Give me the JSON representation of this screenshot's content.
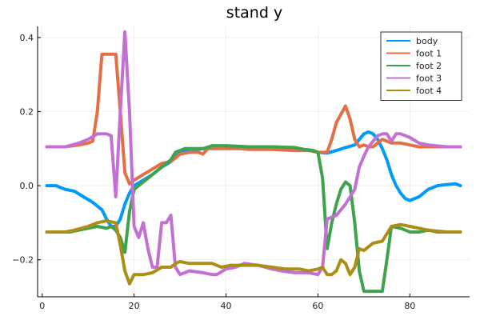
{
  "chart_data": {
    "type": "line",
    "title": "stand y",
    "xlabel": "",
    "ylabel": "",
    "xlim": [
      -1,
      93
    ],
    "ylim": [
      -0.3,
      0.43
    ],
    "xticks": [
      0,
      20,
      40,
      60,
      80
    ],
    "yticks": [
      -0.2,
      0.0,
      0.2,
      0.4
    ],
    "xtick_labels": [
      "0",
      "20",
      "40",
      "60",
      "80"
    ],
    "ytick_labels": [
      "−0.2",
      "0.0",
      "0.2",
      "0.4"
    ],
    "grid": true,
    "legend_position": "top-right",
    "series": [
      {
        "name": "body",
        "color": "#009AFA",
        "points": [
          [
            1,
            0.0
          ],
          [
            3,
            0.0
          ],
          [
            5,
            -0.01
          ],
          [
            7,
            -0.015
          ],
          [
            9,
            -0.03
          ],
          [
            11,
            -0.045
          ],
          [
            13,
            -0.065
          ],
          [
            14,
            -0.09
          ],
          [
            15,
            -0.11
          ],
          [
            16,
            -0.11
          ],
          [
            17,
            -0.09
          ],
          [
            18,
            -0.05
          ],
          [
            19,
            -0.02
          ],
          [
            20,
            0.0
          ],
          [
            22,
            0.015
          ],
          [
            24,
            0.03
          ],
          [
            26,
            0.05
          ],
          [
            28,
            0.065
          ],
          [
            30,
            0.09
          ],
          [
            32,
            0.095
          ],
          [
            35,
            0.1
          ],
          [
            40,
            0.102
          ],
          [
            45,
            0.102
          ],
          [
            50,
            0.102
          ],
          [
            55,
            0.1
          ],
          [
            58,
            0.095
          ],
          [
            60,
            0.09
          ],
          [
            62,
            0.088
          ],
          [
            64,
            0.095
          ],
          [
            66,
            0.103
          ],
          [
            68,
            0.11
          ],
          [
            70,
            0.14
          ],
          [
            71,
            0.145
          ],
          [
            72,
            0.14
          ],
          [
            73,
            0.125
          ],
          [
            74,
            0.1
          ],
          [
            75,
            0.07
          ],
          [
            76,
            0.03
          ],
          [
            77,
            0.0
          ],
          [
            78,
            -0.02
          ],
          [
            79,
            -0.035
          ],
          [
            80,
            -0.04
          ],
          [
            82,
            -0.03
          ],
          [
            84,
            -0.01
          ],
          [
            86,
            0.0
          ],
          [
            88,
            0.003
          ],
          [
            90,
            0.005
          ],
          [
            91,
            0.0
          ]
        ]
      },
      {
        "name": "foot 1",
        "color": "#E26F46",
        "points": [
          [
            1,
            0.105
          ],
          [
            5,
            0.105
          ],
          [
            8,
            0.11
          ],
          [
            10,
            0.115
          ],
          [
            11,
            0.12
          ],
          [
            12,
            0.2
          ],
          [
            13,
            0.355
          ],
          [
            16,
            0.355
          ],
          [
            17,
            0.2
          ],
          [
            18,
            0.035
          ],
          [
            19,
            0.005
          ],
          [
            20,
            0.015
          ],
          [
            22,
            0.03
          ],
          [
            24,
            0.045
          ],
          [
            26,
            0.06
          ],
          [
            28,
            0.065
          ],
          [
            29,
            0.075
          ],
          [
            30,
            0.085
          ],
          [
            32,
            0.09
          ],
          [
            34,
            0.09
          ],
          [
            35,
            0.085
          ],
          [
            36,
            0.1
          ],
          [
            40,
            0.1
          ],
          [
            43,
            0.1
          ],
          [
            45,
            0.098
          ],
          [
            50,
            0.098
          ],
          [
            55,
            0.095
          ],
          [
            58,
            0.095
          ],
          [
            60,
            0.09
          ],
          [
            62,
            0.09
          ],
          [
            63,
            0.125
          ],
          [
            64,
            0.17
          ],
          [
            66,
            0.215
          ],
          [
            67,
            0.18
          ],
          [
            68,
            0.125
          ],
          [
            69,
            0.105
          ],
          [
            70,
            0.11
          ],
          [
            71,
            0.105
          ],
          [
            72,
            0.105
          ],
          [
            73,
            0.115
          ],
          [
            74,
            0.125
          ],
          [
            75,
            0.12
          ],
          [
            76,
            0.115
          ],
          [
            78,
            0.115
          ],
          [
            80,
            0.11
          ],
          [
            82,
            0.105
          ],
          [
            84,
            0.105
          ],
          [
            88,
            0.105
          ],
          [
            91,
            0.105
          ]
        ]
      },
      {
        "name": "foot 2",
        "color": "#3DA44D",
        "points": [
          [
            1,
            -0.125
          ],
          [
            4,
            -0.125
          ],
          [
            6,
            -0.125
          ],
          [
            8,
            -0.12
          ],
          [
            10,
            -0.115
          ],
          [
            12,
            -0.11
          ],
          [
            14,
            -0.115
          ],
          [
            15,
            -0.11
          ],
          [
            16,
            -0.12
          ],
          [
            17,
            -0.14
          ],
          [
            18,
            -0.18
          ],
          [
            19,
            -0.07
          ],
          [
            20,
            -0.01
          ],
          [
            22,
            0.01
          ],
          [
            24,
            0.03
          ],
          [
            26,
            0.05
          ],
          [
            28,
            0.07
          ],
          [
            29,
            0.09
          ],
          [
            31,
            0.1
          ],
          [
            35,
            0.1
          ],
          [
            37,
            0.108
          ],
          [
            40,
            0.108
          ],
          [
            45,
            0.105
          ],
          [
            50,
            0.105
          ],
          [
            55,
            0.103
          ],
          [
            57,
            0.098
          ],
          [
            59,
            0.095
          ],
          [
            60,
            0.09
          ],
          [
            61,
            0.02
          ],
          [
            62,
            -0.17
          ],
          [
            63,
            -0.1
          ],
          [
            64,
            -0.05
          ],
          [
            65,
            -0.01
          ],
          [
            66,
            0.01
          ],
          [
            67,
            0.0
          ],
          [
            68,
            -0.1
          ],
          [
            69,
            -0.23
          ],
          [
            70,
            -0.285
          ],
          [
            74,
            -0.285
          ],
          [
            75,
            -0.2
          ],
          [
            76,
            -0.11
          ],
          [
            78,
            -0.115
          ],
          [
            80,
            -0.125
          ],
          [
            82,
            -0.125
          ],
          [
            84,
            -0.12
          ],
          [
            86,
            -0.125
          ],
          [
            91,
            -0.125
          ]
        ]
      },
      {
        "name": "foot 3",
        "color": "#C271D2",
        "points": [
          [
            1,
            0.105
          ],
          [
            5,
            0.105
          ],
          [
            8,
            0.115
          ],
          [
            10,
            0.125
          ],
          [
            12,
            0.14
          ],
          [
            14,
            0.14
          ],
          [
            15,
            0.135
          ],
          [
            16,
            -0.03
          ],
          [
            17,
            0.2
          ],
          [
            18,
            0.415
          ],
          [
            19,
            0.2
          ],
          [
            20,
            -0.11
          ],
          [
            21,
            -0.14
          ],
          [
            22,
            -0.1
          ],
          [
            23,
            -0.17
          ],
          [
            24,
            -0.22
          ],
          [
            25,
            -0.22
          ],
          [
            26,
            -0.1
          ],
          [
            27,
            -0.1
          ],
          [
            28,
            -0.08
          ],
          [
            29,
            -0.22
          ],
          [
            30,
            -0.24
          ],
          [
            32,
            -0.23
          ],
          [
            35,
            -0.235
          ],
          [
            37,
            -0.24
          ],
          [
            38,
            -0.24
          ],
          [
            40,
            -0.225
          ],
          [
            42,
            -0.22
          ],
          [
            44,
            -0.21
          ],
          [
            47,
            -0.215
          ],
          [
            50,
            -0.225
          ],
          [
            52,
            -0.23
          ],
          [
            55,
            -0.235
          ],
          [
            58,
            -0.235
          ],
          [
            60,
            -0.24
          ],
          [
            61,
            -0.22
          ],
          [
            62,
            -0.09
          ],
          [
            63,
            -0.085
          ],
          [
            64,
            -0.08
          ],
          [
            66,
            -0.05
          ],
          [
            68,
            -0.01
          ],
          [
            69,
            0.05
          ],
          [
            70,
            0.08
          ],
          [
            71,
            0.105
          ],
          [
            72,
            0.12
          ],
          [
            73,
            0.135
          ],
          [
            74,
            0.14
          ],
          [
            75,
            0.14
          ],
          [
            76,
            0.12
          ],
          [
            77,
            0.14
          ],
          [
            78,
            0.14
          ],
          [
            80,
            0.13
          ],
          [
            82,
            0.115
          ],
          [
            84,
            0.11
          ],
          [
            88,
            0.105
          ],
          [
            91,
            0.105
          ]
        ]
      },
      {
        "name": "foot 4",
        "color": "#AC8D18",
        "points": [
          [
            1,
            -0.125
          ],
          [
            5,
            -0.125
          ],
          [
            7,
            -0.12
          ],
          [
            10,
            -0.11
          ],
          [
            12,
            -0.1
          ],
          [
            14,
            -0.095
          ],
          [
            16,
            -0.1
          ],
          [
            17,
            -0.16
          ],
          [
            18,
            -0.23
          ],
          [
            19,
            -0.265
          ],
          [
            20,
            -0.24
          ],
          [
            22,
            -0.24
          ],
          [
            24,
            -0.235
          ],
          [
            26,
            -0.22
          ],
          [
            28,
            -0.22
          ],
          [
            29,
            -0.21
          ],
          [
            30,
            -0.205
          ],
          [
            32,
            -0.21
          ],
          [
            35,
            -0.21
          ],
          [
            37,
            -0.21
          ],
          [
            39,
            -0.22
          ],
          [
            41,
            -0.215
          ],
          [
            44,
            -0.215
          ],
          [
            47,
            -0.215
          ],
          [
            50,
            -0.22
          ],
          [
            53,
            -0.225
          ],
          [
            56,
            -0.225
          ],
          [
            58,
            -0.23
          ],
          [
            60,
            -0.225
          ],
          [
            61,
            -0.22
          ],
          [
            62,
            -0.24
          ],
          [
            63,
            -0.24
          ],
          [
            64,
            -0.23
          ],
          [
            65,
            -0.2
          ],
          [
            66,
            -0.21
          ],
          [
            67,
            -0.24
          ],
          [
            68,
            -0.22
          ],
          [
            69,
            -0.17
          ],
          [
            70,
            -0.175
          ],
          [
            72,
            -0.155
          ],
          [
            74,
            -0.15
          ],
          [
            76,
            -0.11
          ],
          [
            78,
            -0.105
          ],
          [
            80,
            -0.11
          ],
          [
            82,
            -0.115
          ],
          [
            84,
            -0.12
          ],
          [
            88,
            -0.125
          ],
          [
            91,
            -0.125
          ]
        ]
      }
    ]
  }
}
